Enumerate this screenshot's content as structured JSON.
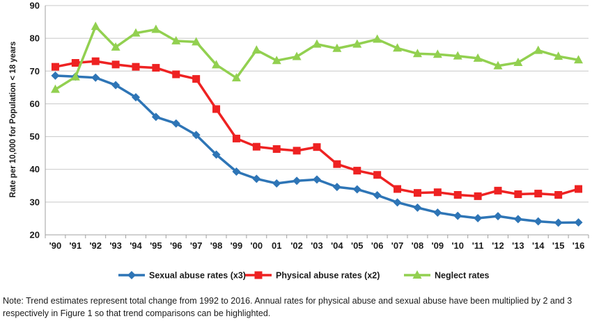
{
  "chart_data": {
    "type": "line",
    "title": "",
    "xlabel": "",
    "ylabel": "Rate per 10,000 for Population < 18 years",
    "ylim": [
      20,
      90
    ],
    "yticks": [
      20,
      30,
      40,
      50,
      60,
      70,
      80,
      90
    ],
    "grid": "horizontal",
    "legend_position": "bottom",
    "categories": [
      "'90",
      "'91",
      "'92",
      "'93",
      "'94",
      "'95",
      "'96",
      "'97",
      "'98",
      "'99",
      "'00",
      "01",
      "'02",
      "'03",
      "'04",
      "'05",
      "'06",
      "'07",
      "'08",
      "'09",
      "'10",
      "'11",
      "'12",
      "'13",
      "'14",
      "'15",
      "'16"
    ],
    "series": [
      {
        "name": "Sexual abuse rates (x3)",
        "color": "#2e75b6",
        "marker": "diamond",
        "values": [
          68.6,
          68.3,
          68,
          65.7,
          62,
          56,
          54,
          50.5,
          44.5,
          39.3,
          37.1,
          35.7,
          36.5,
          36.9,
          34.6,
          33.9,
          32.1,
          29.9,
          28.3,
          26.8,
          25.8,
          25.1,
          25.7,
          24.8,
          24.1,
          23.7,
          23.8
        ]
      },
      {
        "name": "Physical abuse rates (x2)",
        "color": "#ee2222",
        "marker": "square",
        "values": [
          71.3,
          72.5,
          73,
          72,
          71.3,
          71,
          69,
          67.6,
          58.4,
          49.4,
          46.9,
          46.2,
          45.7,
          46.8,
          41.6,
          39.6,
          38.3,
          34,
          32.8,
          33,
          32.2,
          31.8,
          33.5,
          32.4,
          32.6,
          32.2,
          34
        ]
      },
      {
        "name": "Neglect rates",
        "color": "#92d050",
        "marker": "triangle",
        "values": [
          64.4,
          68.2,
          83.6,
          77.3,
          81.6,
          82.7,
          79.2,
          78.9,
          71.9,
          67.9,
          76.4,
          73.2,
          74.4,
          78.2,
          76.9,
          78.2,
          79.7,
          77,
          75.3,
          75.1,
          74.6,
          73.9,
          71.6,
          72.6,
          76.3,
          74.5,
          73.4
        ]
      }
    ]
  },
  "note": "Note: Trend estimates represent total change from 1992 to 2016. Annual rates for physical abuse and sexual abuse have been multiplied by 2 and 3 respectively in Figure 1 so that trend comparisons can be highlighted."
}
